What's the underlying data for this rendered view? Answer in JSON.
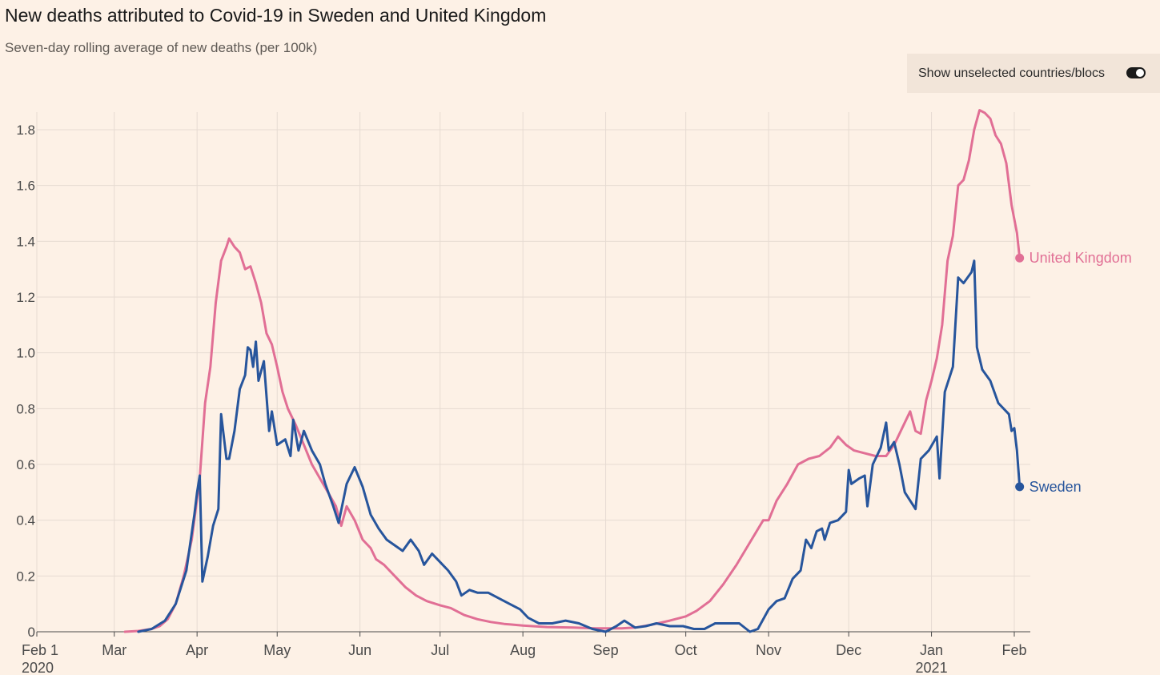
{
  "title": "New deaths attributed to Covid-19 in Sweden and United Kingdom",
  "subtitle": "Seven-day rolling average of new deaths (per 100k)",
  "toggle": {
    "label": "Show unselected countries/blocs",
    "on": true
  },
  "colors": {
    "uk": "#e16f95",
    "sweden": "#27559c",
    "grid": "#e6dbd2",
    "axis": "#4a4a4a"
  },
  "chart_data": {
    "type": "line",
    "title": "New deaths attributed to Covid-19 in Sweden and United Kingdom",
    "subtitle": "Seven-day rolling average of new deaths (per 100k)",
    "xlabel": "",
    "ylabel": "",
    "xlim": [
      "2020-02-01",
      "2021-02-07"
    ],
    "ylim": [
      0,
      1.85
    ],
    "y_ticks": [
      0,
      0.2,
      0.4,
      0.6,
      0.8,
      1.0,
      1.2,
      1.4,
      1.6,
      1.8
    ],
    "y_tick_labels": [
      "0",
      "0.2",
      "0.4",
      "0.6",
      "0.8",
      "1.0",
      "1.2",
      "1.4",
      "1.6",
      "1.8"
    ],
    "x_ticks": [
      {
        "date": "2020-02-01",
        "label": "Feb 1",
        "sublabel": "2020"
      },
      {
        "date": "2020-03-01",
        "label": "Mar",
        "sublabel": ""
      },
      {
        "date": "2020-04-01",
        "label": "Apr",
        "sublabel": ""
      },
      {
        "date": "2020-05-01",
        "label": "May",
        "sublabel": ""
      },
      {
        "date": "2020-06-01",
        "label": "Jun",
        "sublabel": ""
      },
      {
        "date": "2020-07-01",
        "label": "Jul",
        "sublabel": ""
      },
      {
        "date": "2020-08-01",
        "label": "Aug",
        "sublabel": ""
      },
      {
        "date": "2020-09-01",
        "label": "Sep",
        "sublabel": ""
      },
      {
        "date": "2020-10-01",
        "label": "Oct",
        "sublabel": ""
      },
      {
        "date": "2020-11-01",
        "label": "Nov",
        "sublabel": ""
      },
      {
        "date": "2020-12-01",
        "label": "Dec",
        "sublabel": ""
      },
      {
        "date": "2021-01-01",
        "label": "Jan",
        "sublabel": "2021"
      },
      {
        "date": "2021-02-01",
        "label": "Feb",
        "sublabel": ""
      }
    ],
    "grid": true,
    "legend": "end-labels",
    "series": [
      {
        "name": "United Kingdom",
        "color": "#e16f95",
        "points": [
          [
            "2020-03-05",
            0
          ],
          [
            "2020-03-10",
            0.003
          ],
          [
            "2020-03-15",
            0.01
          ],
          [
            "2020-03-18",
            0.02
          ],
          [
            "2020-03-21",
            0.045
          ],
          [
            "2020-03-24",
            0.1
          ],
          [
            "2020-03-27",
            0.2
          ],
          [
            "2020-03-30",
            0.33
          ],
          [
            "2020-04-02",
            0.55
          ],
          [
            "2020-04-04",
            0.82
          ],
          [
            "2020-04-06",
            0.95
          ],
          [
            "2020-04-08",
            1.18
          ],
          [
            "2020-04-10",
            1.33
          ],
          [
            "2020-04-12",
            1.38
          ],
          [
            "2020-04-13",
            1.41
          ],
          [
            "2020-04-15",
            1.38
          ],
          [
            "2020-04-17",
            1.36
          ],
          [
            "2020-04-19",
            1.3
          ],
          [
            "2020-04-21",
            1.31
          ],
          [
            "2020-04-23",
            1.25
          ],
          [
            "2020-04-25",
            1.18
          ],
          [
            "2020-04-27",
            1.07
          ],
          [
            "2020-04-29",
            1.03
          ],
          [
            "2020-05-01",
            0.95
          ],
          [
            "2020-05-03",
            0.86
          ],
          [
            "2020-05-05",
            0.8
          ],
          [
            "2020-05-08",
            0.74
          ],
          [
            "2020-05-11",
            0.67
          ],
          [
            "2020-05-14",
            0.6
          ],
          [
            "2020-05-17",
            0.55
          ],
          [
            "2020-05-20",
            0.5
          ],
          [
            "2020-05-23",
            0.45
          ],
          [
            "2020-05-25",
            0.38
          ],
          [
            "2020-05-27",
            0.45
          ],
          [
            "2020-05-30",
            0.4
          ],
          [
            "2020-06-02",
            0.33
          ],
          [
            "2020-06-05",
            0.3
          ],
          [
            "2020-06-07",
            0.26
          ],
          [
            "2020-06-10",
            0.24
          ],
          [
            "2020-06-14",
            0.2
          ],
          [
            "2020-06-18",
            0.16
          ],
          [
            "2020-06-22",
            0.13
          ],
          [
            "2020-06-26",
            0.11
          ],
          [
            "2020-07-01",
            0.095
          ],
          [
            "2020-07-05",
            0.085
          ],
          [
            "2020-07-10",
            0.06
          ],
          [
            "2020-07-15",
            0.045
          ],
          [
            "2020-07-20",
            0.035
          ],
          [
            "2020-07-25",
            0.028
          ],
          [
            "2020-08-01",
            0.022
          ],
          [
            "2020-08-10",
            0.017
          ],
          [
            "2020-08-20",
            0.015
          ],
          [
            "2020-08-28",
            0.012
          ],
          [
            "2020-09-01",
            0.012
          ],
          [
            "2020-09-07",
            0.012
          ],
          [
            "2020-09-12",
            0.015
          ],
          [
            "2020-09-18",
            0.025
          ],
          [
            "2020-09-25",
            0.04
          ],
          [
            "2020-10-01",
            0.055
          ],
          [
            "2020-10-05",
            0.075
          ],
          [
            "2020-10-10",
            0.11
          ],
          [
            "2020-10-15",
            0.17
          ],
          [
            "2020-10-20",
            0.24
          ],
          [
            "2020-10-25",
            0.32
          ],
          [
            "2020-10-30",
            0.4
          ],
          [
            "2020-11-01",
            0.4
          ],
          [
            "2020-11-04",
            0.47
          ],
          [
            "2020-11-08",
            0.53
          ],
          [
            "2020-11-12",
            0.6
          ],
          [
            "2020-11-16",
            0.62
          ],
          [
            "2020-11-20",
            0.63
          ],
          [
            "2020-11-24",
            0.66
          ],
          [
            "2020-11-27",
            0.7
          ],
          [
            "2020-11-30",
            0.67
          ],
          [
            "2020-12-03",
            0.65
          ],
          [
            "2020-12-07",
            0.64
          ],
          [
            "2020-12-11",
            0.63
          ],
          [
            "2020-12-15",
            0.63
          ],
          [
            "2020-12-18",
            0.67
          ],
          [
            "2020-12-21",
            0.73
          ],
          [
            "2020-12-24",
            0.79
          ],
          [
            "2020-12-26",
            0.72
          ],
          [
            "2020-12-28",
            0.71
          ],
          [
            "2020-12-30",
            0.83
          ],
          [
            "2021-01-01",
            0.9
          ],
          [
            "2021-01-03",
            0.98
          ],
          [
            "2021-01-05",
            1.1
          ],
          [
            "2021-01-07",
            1.33
          ],
          [
            "2021-01-09",
            1.42
          ],
          [
            "2021-01-11",
            1.6
          ],
          [
            "2021-01-13",
            1.62
          ],
          [
            "2021-01-15",
            1.69
          ],
          [
            "2021-01-17",
            1.8
          ],
          [
            "2021-01-19",
            1.87
          ],
          [
            "2021-01-21",
            1.86
          ],
          [
            "2021-01-23",
            1.84
          ],
          [
            "2021-01-25",
            1.78
          ],
          [
            "2021-01-27",
            1.75
          ],
          [
            "2021-01-29",
            1.68
          ],
          [
            "2021-01-31",
            1.53
          ],
          [
            "2021-02-02",
            1.43
          ],
          [
            "2021-02-03",
            1.34
          ]
        ]
      },
      {
        "name": "Sweden",
        "color": "#27559c",
        "points": [
          [
            "2020-03-10",
            0
          ],
          [
            "2020-03-15",
            0.01
          ],
          [
            "2020-03-20",
            0.04
          ],
          [
            "2020-03-24",
            0.1
          ],
          [
            "2020-03-28",
            0.22
          ],
          [
            "2020-03-31",
            0.42
          ],
          [
            "2020-04-01",
            0.5
          ],
          [
            "2020-04-02",
            0.56
          ],
          [
            "2020-04-03",
            0.18
          ],
          [
            "2020-04-05",
            0.27
          ],
          [
            "2020-04-07",
            0.38
          ],
          [
            "2020-04-09",
            0.44
          ],
          [
            "2020-04-10",
            0.78
          ],
          [
            "2020-04-12",
            0.62
          ],
          [
            "2020-04-13",
            0.62
          ],
          [
            "2020-04-15",
            0.72
          ],
          [
            "2020-04-17",
            0.87
          ],
          [
            "2020-04-19",
            0.92
          ],
          [
            "2020-04-20",
            1.02
          ],
          [
            "2020-04-21",
            1.01
          ],
          [
            "2020-04-22",
            0.95
          ],
          [
            "2020-04-23",
            1.04
          ],
          [
            "2020-04-24",
            0.9
          ],
          [
            "2020-04-26",
            0.97
          ],
          [
            "2020-04-28",
            0.72
          ],
          [
            "2020-04-29",
            0.79
          ],
          [
            "2020-05-01",
            0.67
          ],
          [
            "2020-05-04",
            0.69
          ],
          [
            "2020-05-06",
            0.63
          ],
          [
            "2020-05-07",
            0.76
          ],
          [
            "2020-05-09",
            0.65
          ],
          [
            "2020-05-11",
            0.72
          ],
          [
            "2020-05-14",
            0.65
          ],
          [
            "2020-05-17",
            0.6
          ],
          [
            "2020-05-19",
            0.53
          ],
          [
            "2020-05-22",
            0.45
          ],
          [
            "2020-05-24",
            0.39
          ],
          [
            "2020-05-27",
            0.53
          ],
          [
            "2020-05-30",
            0.59
          ],
          [
            "2020-06-02",
            0.52
          ],
          [
            "2020-06-05",
            0.42
          ],
          [
            "2020-06-08",
            0.37
          ],
          [
            "2020-06-11",
            0.33
          ],
          [
            "2020-06-14",
            0.31
          ],
          [
            "2020-06-17",
            0.29
          ],
          [
            "2020-06-20",
            0.33
          ],
          [
            "2020-06-23",
            0.29
          ],
          [
            "2020-06-25",
            0.24
          ],
          [
            "2020-06-28",
            0.28
          ],
          [
            "2020-07-01",
            0.25
          ],
          [
            "2020-07-04",
            0.22
          ],
          [
            "2020-07-07",
            0.18
          ],
          [
            "2020-07-09",
            0.13
          ],
          [
            "2020-07-12",
            0.15
          ],
          [
            "2020-07-15",
            0.14
          ],
          [
            "2020-07-19",
            0.14
          ],
          [
            "2020-07-23",
            0.12
          ],
          [
            "2020-07-27",
            0.1
          ],
          [
            "2020-07-31",
            0.08
          ],
          [
            "2020-08-03",
            0.05
          ],
          [
            "2020-08-07",
            0.03
          ],
          [
            "2020-08-12",
            0.03
          ],
          [
            "2020-08-17",
            0.04
          ],
          [
            "2020-08-22",
            0.03
          ],
          [
            "2020-08-27",
            0.01
          ],
          [
            "2020-09-01",
            0.0
          ],
          [
            "2020-09-05",
            0.02
          ],
          [
            "2020-09-08",
            0.04
          ],
          [
            "2020-09-12",
            0.015
          ],
          [
            "2020-09-16",
            0.02
          ],
          [
            "2020-09-20",
            0.03
          ],
          [
            "2020-09-25",
            0.02
          ],
          [
            "2020-09-30",
            0.02
          ],
          [
            "2020-10-04",
            0.01
          ],
          [
            "2020-10-08",
            0.01
          ],
          [
            "2020-10-12",
            0.03
          ],
          [
            "2020-10-17",
            0.03
          ],
          [
            "2020-10-21",
            0.03
          ],
          [
            "2020-10-25",
            0.0
          ],
          [
            "2020-10-28",
            0.01
          ],
          [
            "2020-11-01",
            0.08
          ],
          [
            "2020-11-04",
            0.11
          ],
          [
            "2020-11-07",
            0.12
          ],
          [
            "2020-11-10",
            0.19
          ],
          [
            "2020-11-13",
            0.22
          ],
          [
            "2020-11-15",
            0.33
          ],
          [
            "2020-11-17",
            0.3
          ],
          [
            "2020-11-19",
            0.36
          ],
          [
            "2020-11-21",
            0.37
          ],
          [
            "2020-11-22",
            0.33
          ],
          [
            "2020-11-24",
            0.39
          ],
          [
            "2020-11-27",
            0.4
          ],
          [
            "2020-11-30",
            0.43
          ],
          [
            "2020-12-01",
            0.58
          ],
          [
            "2020-12-02",
            0.53
          ],
          [
            "2020-12-05",
            0.55
          ],
          [
            "2020-12-07",
            0.56
          ],
          [
            "2020-12-08",
            0.45
          ],
          [
            "2020-12-10",
            0.6
          ],
          [
            "2020-12-13",
            0.66
          ],
          [
            "2020-12-15",
            0.75
          ],
          [
            "2020-12-16",
            0.65
          ],
          [
            "2020-12-18",
            0.68
          ],
          [
            "2020-12-20",
            0.6
          ],
          [
            "2020-12-22",
            0.5
          ],
          [
            "2020-12-26",
            0.44
          ],
          [
            "2020-12-28",
            0.62
          ],
          [
            "2020-12-31",
            0.65
          ],
          [
            "2021-01-03",
            0.7
          ],
          [
            "2021-01-04",
            0.55
          ],
          [
            "2021-01-06",
            0.86
          ],
          [
            "2021-01-09",
            0.95
          ],
          [
            "2021-01-11",
            1.27
          ],
          [
            "2021-01-13",
            1.25
          ],
          [
            "2021-01-16",
            1.29
          ],
          [
            "2021-01-17",
            1.33
          ],
          [
            "2021-01-18",
            1.02
          ],
          [
            "2021-01-20",
            0.94
          ],
          [
            "2021-01-23",
            0.9
          ],
          [
            "2021-01-26",
            0.82
          ],
          [
            "2021-01-30",
            0.78
          ],
          [
            "2021-01-31",
            0.72
          ],
          [
            "2021-02-01",
            0.73
          ],
          [
            "2021-02-02",
            0.65
          ],
          [
            "2021-02-03",
            0.52
          ]
        ]
      }
    ]
  }
}
